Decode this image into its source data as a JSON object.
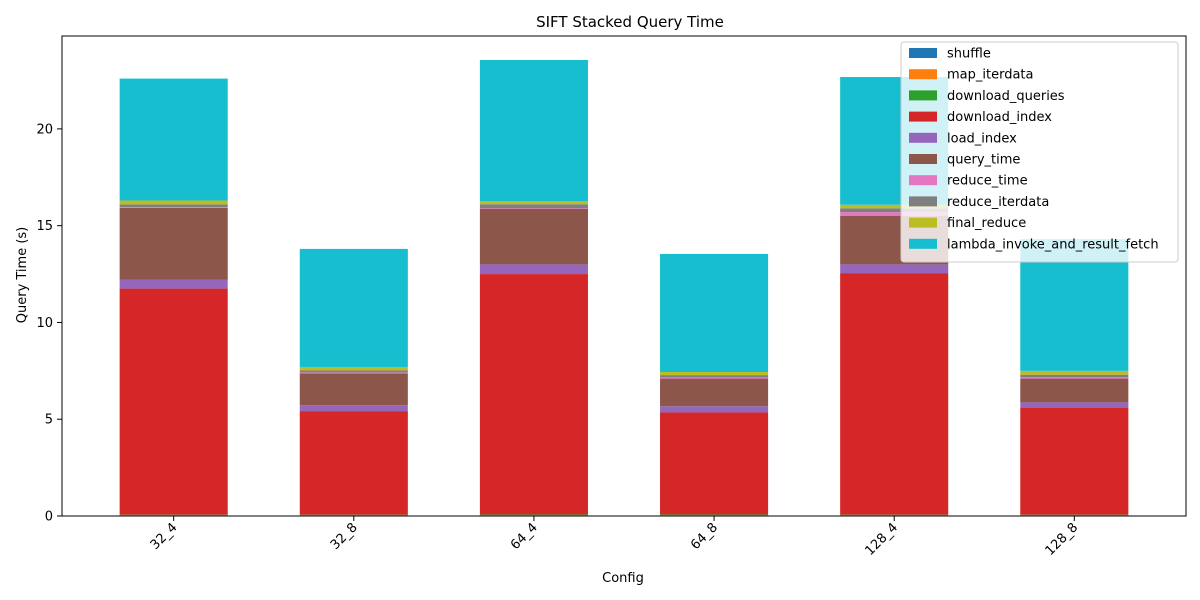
{
  "chart_data": {
    "type": "bar",
    "stacked": true,
    "title": "SIFT Stacked Query Time",
    "xlabel": "Config",
    "ylabel": "Query Time (s)",
    "ylim": [
      0,
      24.8
    ],
    "yticks": [
      0,
      5,
      10,
      15,
      20
    ],
    "grid": false,
    "legend_position": "top-right",
    "categories": [
      "32_4",
      "32_8",
      "64_4",
      "64_8",
      "128_4",
      "128_8"
    ],
    "series": [
      {
        "name": "shuffle",
        "color": "#1f77b4",
        "values": [
          0.02,
          0.02,
          0.02,
          0.02,
          0.02,
          0.02
        ]
      },
      {
        "name": "map_iterdata",
        "color": "#ff7f0e",
        "values": [
          0.02,
          0.02,
          0.02,
          0.02,
          0.02,
          0.02
        ]
      },
      {
        "name": "download_queries",
        "color": "#2ca02c",
        "values": [
          0.03,
          0.03,
          0.04,
          0.04,
          0.03,
          0.03
        ]
      },
      {
        "name": "download_index",
        "color": "#d62728",
        "values": [
          11.68,
          5.35,
          12.42,
          5.27,
          12.48,
          5.53
        ]
      },
      {
        "name": "load_index",
        "color": "#9467bd",
        "values": [
          0.45,
          0.3,
          0.5,
          0.32,
          0.45,
          0.27
        ]
      },
      {
        "name": "query_time",
        "color": "#8c564b",
        "values": [
          3.72,
          1.65,
          2.88,
          1.43,
          2.5,
          1.23
        ]
      },
      {
        "name": "reduce_time",
        "color": "#e377c2",
        "values": [
          0.03,
          0.05,
          0.03,
          0.06,
          0.2,
          0.08
        ]
      },
      {
        "name": "reduce_iterdata",
        "color": "#7f7f7f",
        "values": [
          0.15,
          0.1,
          0.2,
          0.12,
          0.2,
          0.12
        ]
      },
      {
        "name": "final_reduce",
        "color": "#bcbd22",
        "values": [
          0.2,
          0.18,
          0.15,
          0.16,
          0.18,
          0.2
        ]
      },
      {
        "name": "lambda_invoke_and_result_fetch",
        "color": "#17becf",
        "values": [
          6.3,
          6.1,
          7.3,
          6.1,
          6.6,
          6.8
        ]
      }
    ]
  }
}
